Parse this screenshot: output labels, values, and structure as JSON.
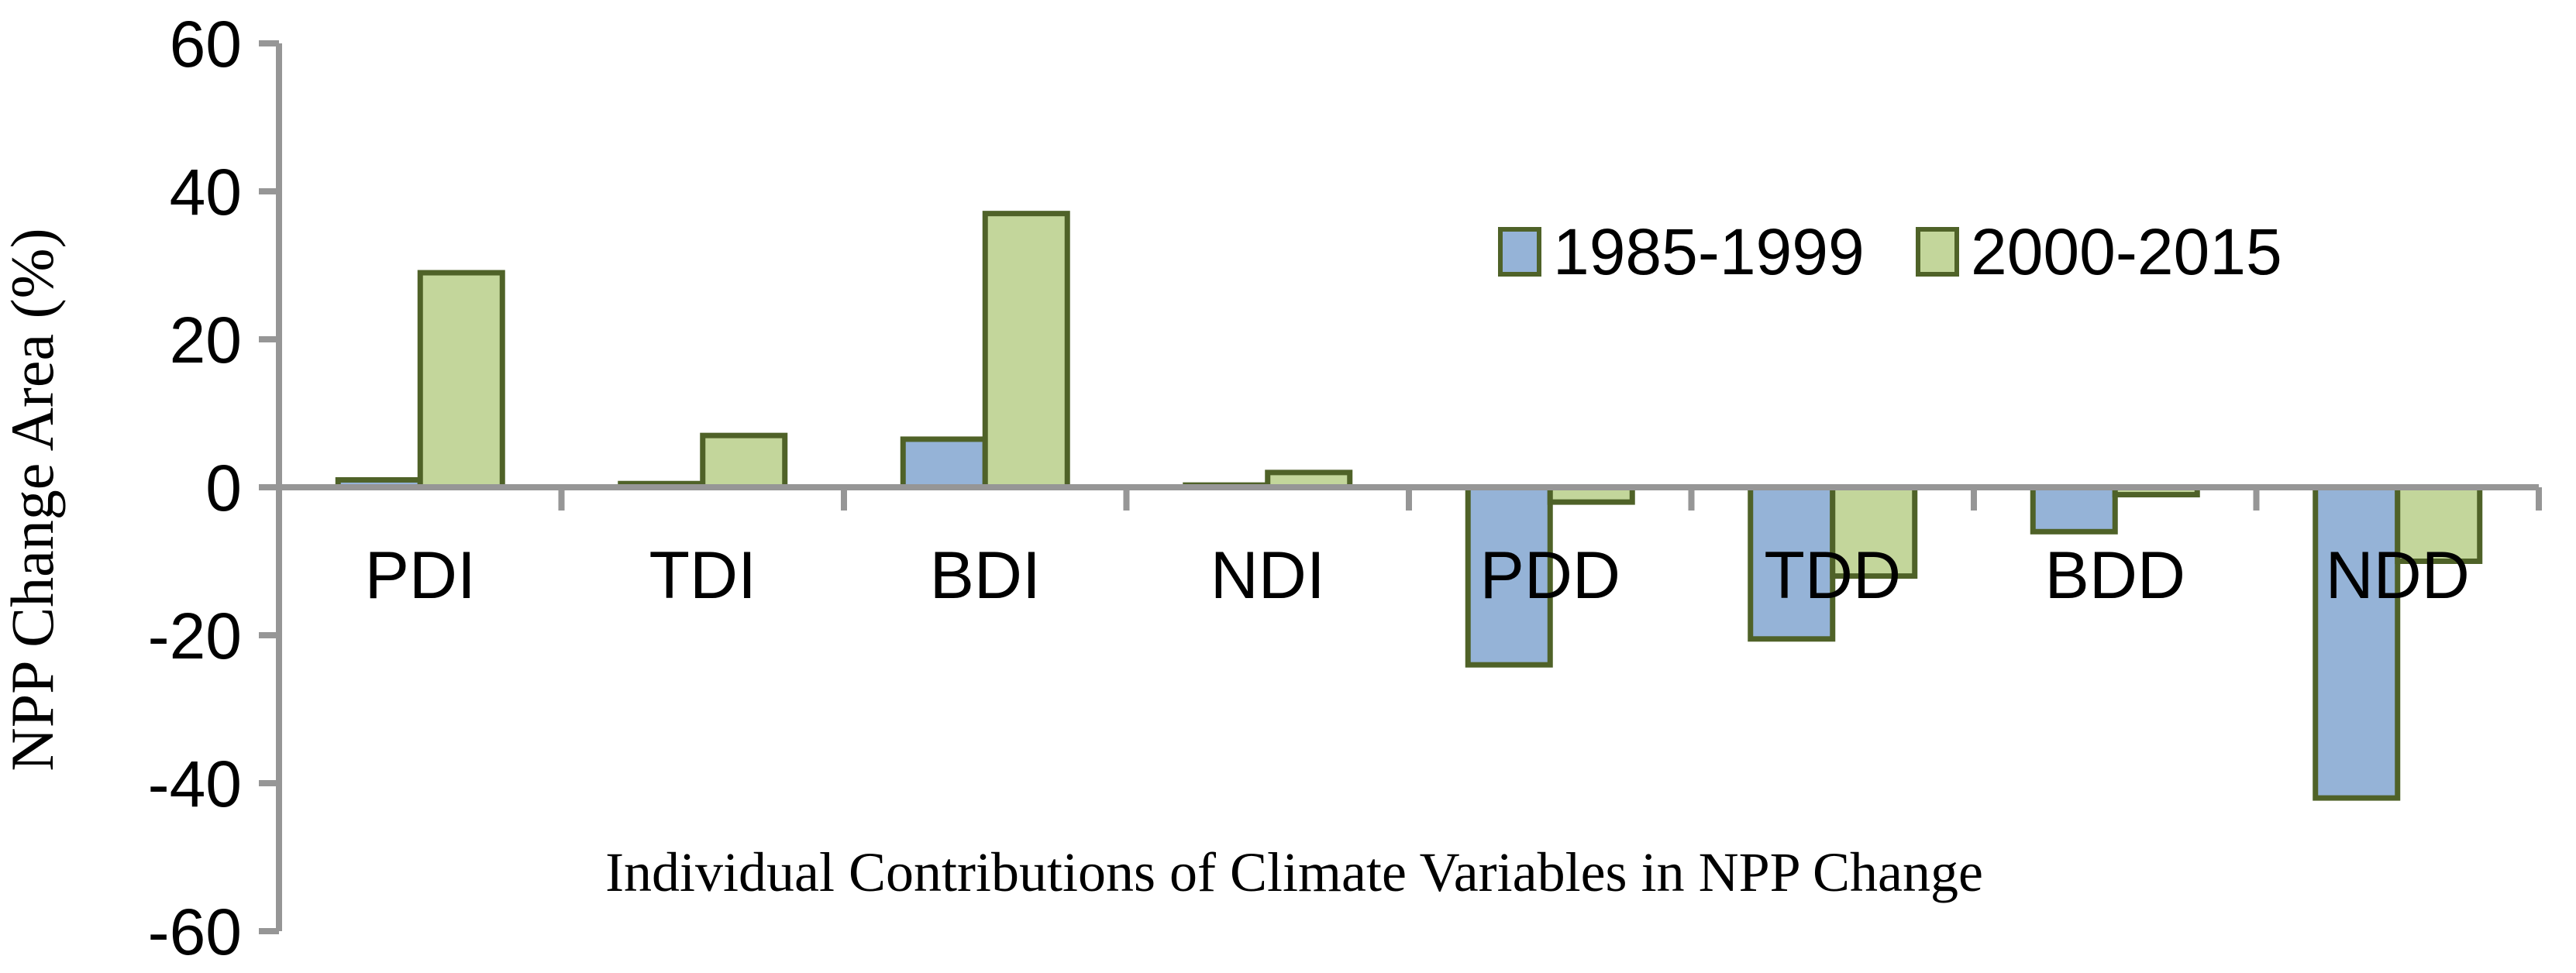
{
  "figure": {
    "background": "#ffffff"
  },
  "chart_data": {
    "type": "bar",
    "title": "",
    "xlabel": "Individual Contributions of Climate Variables in NPP Change",
    "ylabel": "NPP Change Area (%)",
    "categories": [
      "PDI",
      "TDI",
      "BDI",
      "NDI",
      "PDD",
      "TDD",
      "BDD",
      "NDD"
    ],
    "series": [
      {
        "name": "1985-1999",
        "color": "#95B3D7",
        "values": [
          1,
          0.5,
          6.5,
          0.3,
          -24,
          -20.5,
          -6,
          -42
        ]
      },
      {
        "name": "2000-2015",
        "color": "#C3D69B",
        "values": [
          29,
          7,
          37,
          2,
          -2,
          -12,
          -1,
          -10
        ]
      }
    ],
    "ylim": [
      -60,
      60
    ],
    "yticks": [
      60,
      40,
      20,
      0,
      -20,
      -40,
      -60
    ],
    "ytick_labels": [
      "60",
      "40",
      "20",
      "0",
      "-20",
      "-40",
      "-60"
    ],
    "grid": false,
    "legend_position": "inside-top-right",
    "colors": {
      "bar_border": "#4F6228",
      "axis": "#969696",
      "text": "#000000"
    }
  }
}
